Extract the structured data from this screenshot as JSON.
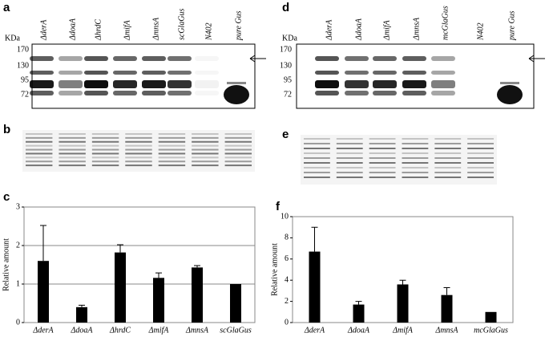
{
  "panels": {
    "a": {
      "label": "a",
      "unit": "KDa",
      "markers": [
        170,
        130,
        95,
        72
      ],
      "lanes": [
        "ΔderA",
        "ΔdoaA",
        "ΔhrdC",
        "ΔmifA",
        "ΔmnsA",
        "scGlaGus",
        "N402",
        "pure Gus"
      ]
    },
    "b": {
      "label": "b"
    },
    "d": {
      "label": "d",
      "unit": "KDa",
      "markers": [
        170,
        130,
        95,
        72
      ],
      "lanes": [
        "ΔderA",
        "ΔdoaA",
        "ΔmifA",
        "ΔmnsA",
        "mcGlaGus",
        "N402",
        "pure Gus"
      ]
    },
    "e": {
      "label": "e"
    }
  },
  "chart_data": [
    {
      "type": "bar",
      "label": "c",
      "y_label": "Relative amount",
      "categories": [
        "ΔderA",
        "ΔdoaA",
        "ΔhrdC",
        "ΔmifA",
        "ΔmnsA",
        "scGlaGus"
      ],
      "values": [
        1.6,
        0.4,
        1.82,
        1.16,
        1.43,
        1.0
      ],
      "errors": [
        0.92,
        0.05,
        0.2,
        0.13,
        0.05,
        0
      ],
      "color": "#000000",
      "ylim": [
        0,
        3
      ],
      "yticks": [
        0,
        1,
        2,
        3
      ],
      "grid": true
    },
    {
      "type": "bar",
      "label": "f",
      "y_label": "Relative amount",
      "categories": [
        "ΔderA",
        "ΔdoaA",
        "ΔmifA",
        "ΔmnsA",
        "mcGlaGus"
      ],
      "values": [
        6.7,
        1.7,
        3.6,
        2.6,
        1.0
      ],
      "errors": [
        2.3,
        0.3,
        0.4,
        0.7,
        0
      ],
      "color": "#000000",
      "ylim": [
        0,
        10
      ],
      "yticks": [
        0,
        2,
        4,
        6,
        8,
        10
      ],
      "grid": false
    }
  ]
}
